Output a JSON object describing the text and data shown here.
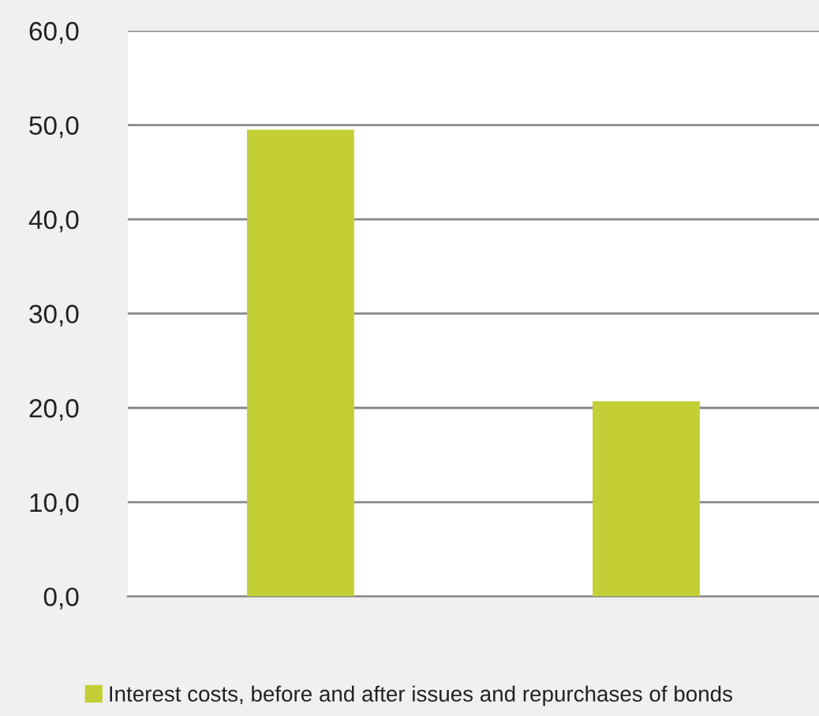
{
  "chart_data": {
    "type": "bar",
    "categories": [
      null,
      null
    ],
    "series": [
      {
        "name": "Interest costs, before and after issues and repurchases of bonds",
        "color": "#c3cf35",
        "values": [
          49.5,
          20.7
        ]
      }
    ],
    "ylim": [
      0,
      60
    ],
    "yticks": [
      {
        "value": 0,
        "label": "0,0"
      },
      {
        "value": 10,
        "label": "10,0"
      },
      {
        "value": 20,
        "label": "20,0"
      },
      {
        "value": 30,
        "label": "30,0"
      },
      {
        "value": 40,
        "label": "40,0"
      },
      {
        "value": 50,
        "label": "50,0"
      },
      {
        "value": 60,
        "label": "60,0"
      }
    ],
    "grid": "y",
    "legend": "bottom",
    "tick_labels": "y"
  }
}
